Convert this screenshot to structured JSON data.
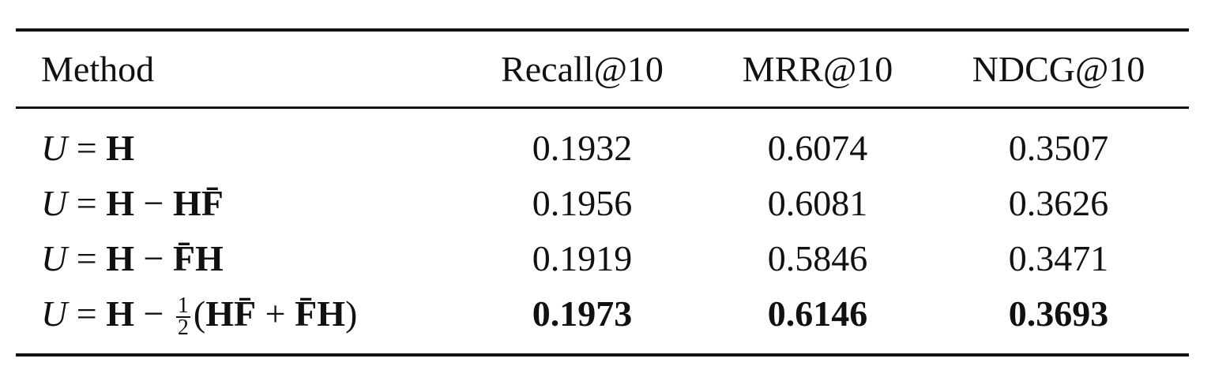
{
  "table": {
    "header": [
      "Method",
      "Recall@10",
      "MRR@10",
      "NDCG@10"
    ],
    "rows": [
      {
        "method": [
          {
            "text": "U",
            "style": "italic"
          },
          {
            "text": " = "
          },
          {
            "text": "H",
            "style": "bold"
          }
        ],
        "values": [
          "0.1932",
          "0.6074",
          "0.3507"
        ]
      },
      {
        "method": [
          {
            "text": "U",
            "style": "italic"
          },
          {
            "text": " = "
          },
          {
            "text": "H",
            "style": "bold"
          },
          {
            "text": " − "
          },
          {
            "text": "HF̄",
            "style": "bold"
          }
        ],
        "values": [
          "0.1956",
          "0.6081",
          "0.3626"
        ]
      },
      {
        "method": [
          {
            "text": "U",
            "style": "italic"
          },
          {
            "text": " = "
          },
          {
            "text": "H",
            "style": "bold"
          },
          {
            "text": " − "
          },
          {
            "text": "F̄H",
            "style": "bold"
          }
        ],
        "values": [
          "0.1919",
          "0.5846",
          "0.3471"
        ]
      },
      {
        "method": [
          {
            "text": "U",
            "style": "italic"
          },
          {
            "text": " = "
          },
          {
            "text": "H",
            "style": "bold"
          },
          {
            "text": " − "
          },
          {
            "num": "1",
            "den": "2"
          },
          {
            "text": "("
          },
          {
            "text": "HF̄",
            "style": "bold"
          },
          {
            "text": " + "
          },
          {
            "text": "F̄H",
            "style": "bold"
          },
          {
            "text": ")"
          }
        ],
        "values": [
          "0.1973",
          "0.6146",
          "0.3693"
        ],
        "bold": true
      }
    ]
  }
}
